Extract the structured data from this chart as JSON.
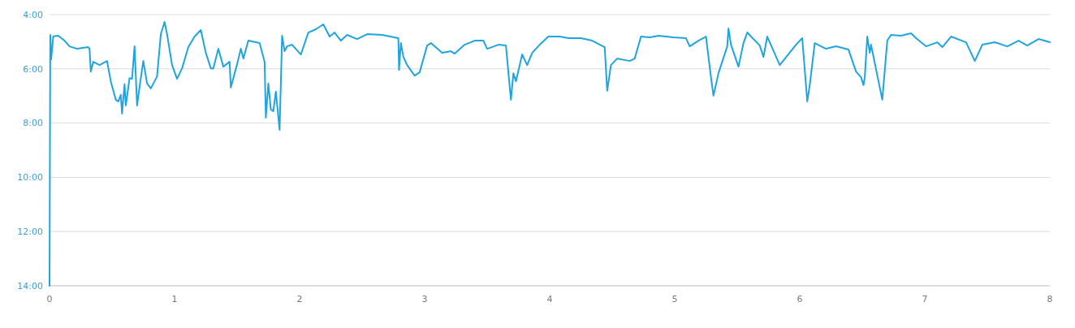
{
  "chart_data": {
    "type": "line",
    "x": [
      0,
      0.006,
      0.013,
      0.03,
      0.07,
      0.12,
      0.16,
      0.22,
      0.31,
      0.32,
      0.33,
      0.35,
      0.4,
      0.46,
      0.49,
      0.53,
      0.55,
      0.57,
      0.58,
      0.6,
      0.61,
      0.64,
      0.66,
      0.68,
      0.7,
      0.73,
      0.75,
      0.78,
      0.81,
      0.86,
      0.89,
      0.92,
      0.94,
      0.98,
      1.02,
      1.06,
      1.11,
      1.16,
      1.21,
      1.25,
      1.29,
      1.31,
      1.35,
      1.39,
      1.44,
      1.45,
      1.5,
      1.53,
      1.55,
      1.59,
      1.68,
      1.72,
      1.73,
      1.75,
      1.77,
      1.79,
      1.81,
      1.84,
      1.86,
      1.88,
      1.9,
      1.94,
      2.01,
      2.07,
      2.13,
      2.19,
      2.24,
      2.28,
      2.33,
      2.38,
      2.46,
      2.54,
      2.66,
      2.79,
      2.795,
      2.81,
      2.83,
      2.86,
      2.92,
      2.96,
      3.02,
      3.05,
      3.14,
      3.21,
      3.24,
      3.32,
      3.4,
      3.47,
      3.5,
      3.59,
      3.65,
      3.69,
      3.71,
      3.73,
      3.78,
      3.82,
      3.86,
      3.92,
      3.99,
      4.08,
      4.15,
      4.25,
      4.34,
      4.44,
      4.46,
      4.49,
      4.54,
      4.64,
      4.68,
      4.73,
      4.8,
      4.87,
      4.99,
      5.09,
      5.12,
      5.19,
      5.25,
      5.29,
      5.31,
      5.35,
      5.42,
      5.43,
      5.45,
      5.51,
      5.55,
      5.58,
      5.68,
      5.71,
      5.74,
      5.84,
      5.97,
      6.02,
      6.06,
      6.08,
      6.12,
      6.21,
      6.29,
      6.39,
      6.45,
      6.49,
      6.51,
      6.52,
      6.54,
      6.56,
      6.57,
      6.66,
      6.7,
      6.73,
      6.81,
      6.89,
      6.93,
      7.01,
      7.1,
      7.14,
      7.21,
      7.33,
      7.4,
      7.46,
      7.56,
      7.66,
      7.75,
      7.82,
      7.91,
      8
    ],
    "series": [
      {
        "color": "#1ea5df",
        "values": [
          14,
          4.75,
          5.65,
          4.8,
          4.78,
          4.96,
          5.17,
          5.26,
          5.2,
          5.26,
          6.1,
          5.74,
          5.86,
          5.71,
          6.46,
          7.14,
          7.2,
          6.96,
          7.65,
          6.57,
          7.35,
          6.34,
          6.37,
          5.17,
          7.35,
          6.34,
          5.71,
          6.54,
          6.72,
          6.28,
          4.72,
          4.27,
          4.72,
          5.86,
          6.37,
          5.98,
          5.2,
          4.81,
          4.57,
          5.41,
          5.98,
          5.98,
          5.26,
          5.92,
          5.74,
          6.69,
          5.83,
          5.26,
          5.62,
          4.96,
          5.05,
          5.74,
          7.8,
          6.54,
          7.5,
          7.56,
          6.84,
          8.25,
          4.78,
          5.35,
          5.17,
          5.11,
          5.47,
          4.66,
          4.54,
          4.36,
          4.81,
          4.66,
          4.96,
          4.75,
          4.9,
          4.72,
          4.75,
          4.87,
          6.04,
          5.05,
          5.56,
          5.86,
          6.25,
          6.13,
          5.14,
          5.05,
          5.41,
          5.35,
          5.44,
          5.11,
          4.96,
          4.96,
          5.26,
          5.11,
          5.14,
          7.14,
          6.16,
          6.46,
          5.47,
          5.86,
          5.41,
          5.11,
          4.81,
          4.81,
          4.87,
          4.87,
          4.96,
          5.2,
          6.81,
          5.86,
          5.62,
          5.71,
          5.62,
          4.81,
          4.84,
          4.78,
          4.84,
          4.87,
          5.17,
          4.96,
          4.81,
          6.31,
          6.99,
          6.16,
          5.17,
          4.51,
          5.11,
          5.92,
          5.05,
          4.66,
          5.14,
          5.56,
          4.81,
          5.86,
          5.11,
          4.87,
          7.2,
          6.6,
          5.05,
          5.26,
          5.17,
          5.29,
          6.1,
          6.31,
          6.6,
          6.31,
          4.81,
          5.41,
          5.11,
          7.14,
          4.96,
          4.75,
          4.78,
          4.69,
          4.87,
          5.17,
          5.02,
          5.2,
          4.81,
          5.02,
          5.71,
          5.11,
          5.02,
          5.17,
          4.96,
          5.14,
          4.9,
          5.02
        ]
      }
    ],
    "xlim": [
      0,
      8
    ],
    "xticks": [
      0,
      1,
      2,
      3,
      4,
      5,
      6,
      7,
      8
    ],
    "ylim": [
      14,
      4
    ],
    "yticks": [
      {
        "value": 4,
        "label": "4:00"
      },
      {
        "value": 6,
        "label": "6:00"
      },
      {
        "value": 8,
        "label": "8:00"
      },
      {
        "value": 10,
        "label": "10:00"
      },
      {
        "value": 12,
        "label": "12:00"
      },
      {
        "value": 14,
        "label": "14:00"
      }
    ],
    "grid": "y",
    "marker": "none",
    "line_style": "solid"
  }
}
